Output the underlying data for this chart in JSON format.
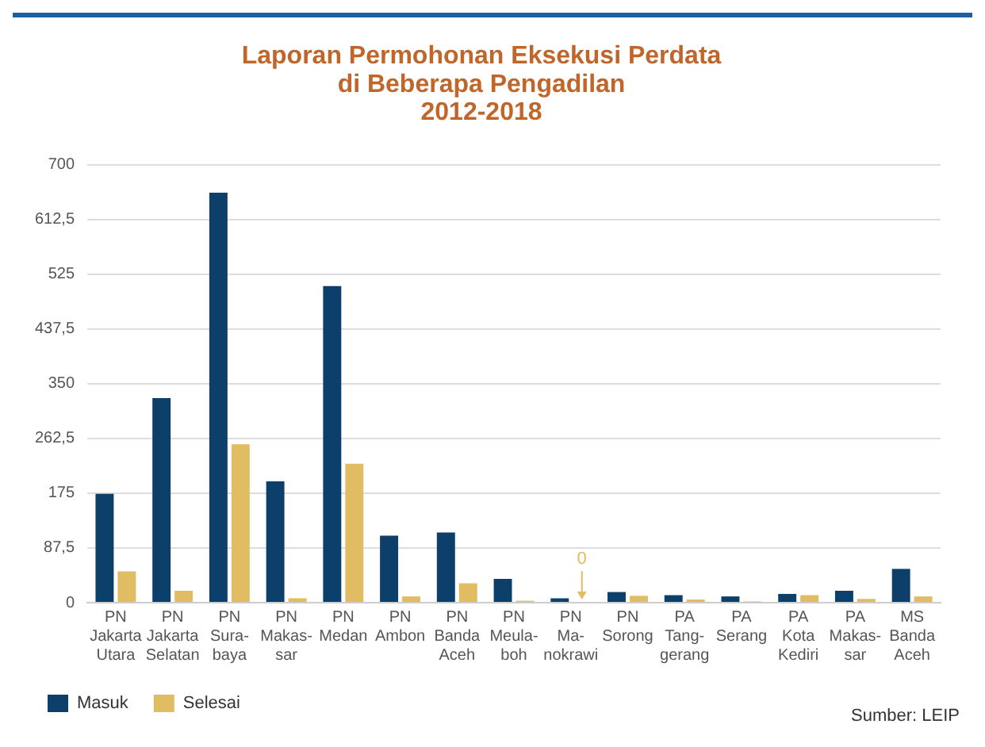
{
  "chart_data": {
    "type": "bar",
    "title": "Laporan Permohonan Eksekusi Perdata\ndi Beberapa Pengadilan\n2012-2018",
    "categories": [
      "PN\nJakarta\nUtara",
      "PN\nJakarta\nSelatan",
      "PN\nSura-\nbaya",
      "PN\nMakas-\nsar",
      "PN\nMedan",
      "PN\nAmbon",
      "PN\nBanda\nAceh",
      "PN\nMeula-\nboh",
      "PN\nMa-\nnokrawi",
      "PN\nSorong",
      "PA\nTang-\ngerang",
      "PA\nSerang",
      "PA\nKota\nKediri",
      "PA\nMakas-\nsar",
      "MS\nBanda\nAceh"
    ],
    "series": [
      {
        "name": "Masuk",
        "color": "#0d3f6b",
        "values": [
          174,
          327,
          655,
          194,
          506,
          107,
          112,
          38,
          7,
          17,
          12,
          10,
          14,
          19,
          54
        ]
      },
      {
        "name": "Selesai",
        "color": "#e0bc63",
        "values": [
          50,
          19,
          253,
          7,
          222,
          10,
          31,
          3,
          0,
          11,
          5,
          2,
          12,
          6,
          10
        ]
      }
    ],
    "ylim": [
      0,
      700
    ],
    "yticks": [
      0,
      {
        "value": 87.5,
        "label": "87,5"
      },
      175,
      {
        "value": 262.5,
        "label": "262,5"
      },
      350,
      {
        "value": 437.5,
        "label": "437,5"
      },
      525,
      {
        "value": 612.5,
        "label": "612,5"
      },
      700
    ],
    "grid": "y",
    "legend": "bottom left",
    "annotations": [
      {
        "text": "0",
        "x": "PN\nMa-\nnokrawi",
        "y": 0
      },
      "Sumber: LEIP"
    ]
  }
}
